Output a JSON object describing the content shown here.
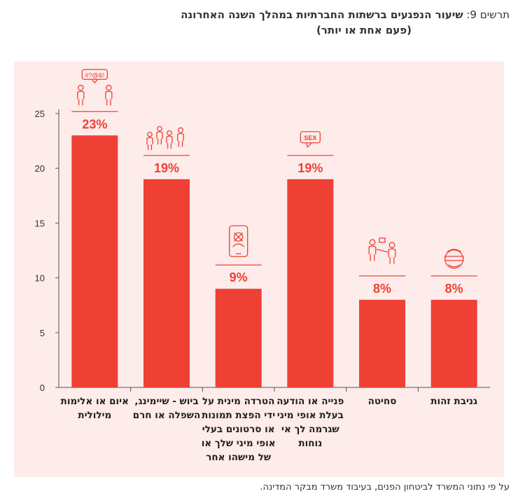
{
  "header": {
    "prefix": "תרשים 9:",
    "title": "שיעור הנפגעים ברשתות החברתיות במהלך השנה האחרונה",
    "subtitle": "(פעם אחת או יותר)"
  },
  "source": "על פי נתוני המשרד לביטחון הפנים, בעיבוד משרד מבקר המדינה.",
  "colors": {
    "bar": "#ee4035",
    "background": "#fdecea",
    "label": "#ee4035"
  },
  "chart_data": {
    "type": "bar",
    "categories": [
      [
        "איום או אלימות",
        "מילולית"
      ],
      [
        "ביוש - שיימינג,",
        "השפלה או חרם"
      ],
      [
        "הטרדה מינית על",
        "ידי הפצת תמונות",
        "או סרטונים בעלי",
        "אופי מיני שלך או",
        "של מישהו אחר"
      ],
      [
        "פנייה או הודעה",
        "בעלת אופי מיני",
        "שגרמה לך אי",
        "נוחות"
      ],
      [
        "סחיטה"
      ],
      [
        "גניבת זהות"
      ]
    ],
    "values": [
      23,
      19,
      9,
      19,
      8,
      8
    ],
    "value_labels": [
      "23%",
      "19%",
      "9%",
      "19%",
      "8%",
      "8%"
    ],
    "icons": [
      "argument-icon",
      "crowd-icon",
      "phone-photo-icon",
      "sex-message-icon",
      "extortion-icon",
      "identity-theft-icon"
    ],
    "icon_texts": [
      "#?@&!",
      "",
      "",
      "SEX",
      "",
      ""
    ],
    "ylim": [
      0,
      25
    ],
    "yticks": [
      0,
      5,
      10,
      15,
      20,
      25
    ],
    "grid": false
  }
}
